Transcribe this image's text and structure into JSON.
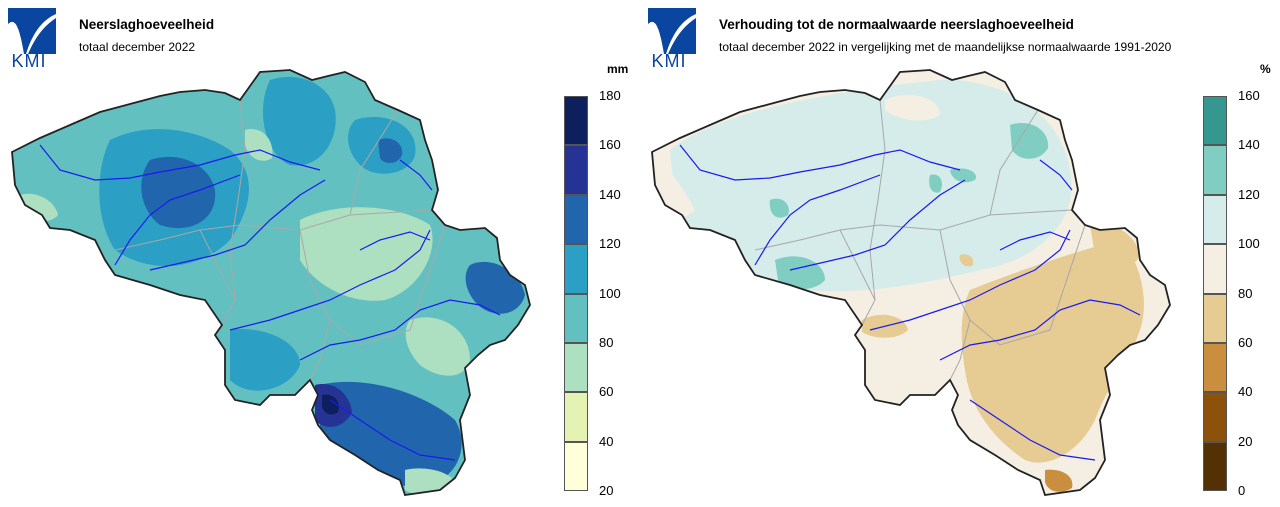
{
  "left_panel": {
    "logo_text": "KMI",
    "title": "Neerslaghoeveelheid",
    "subtitle": "totaal december 2022",
    "unit": "mm",
    "legend": {
      "ticks": [
        "180",
        "160",
        "140",
        "120",
        "100",
        "80",
        "60",
        "40",
        "20"
      ],
      "colors": [
        "#0e1f5e",
        "#253494",
        "#2166ac",
        "#2c9fc4",
        "#62c1c0",
        "#ade0c0",
        "#e4f3b3",
        "#ffffd9"
      ]
    }
  },
  "right_panel": {
    "logo_text": "KMI",
    "title": "Verhouding tot de normaalwaarde neerslaghoeveelheid",
    "subtitle": "totaal december 2022 in vergelijking met de maandelijkse normaalwaarde 1991-2020",
    "unit": "%",
    "legend": {
      "ticks": [
        "160",
        "140",
        "120",
        "100",
        "80",
        "60",
        "40",
        "20",
        "0"
      ],
      "colors": [
        "#35978f",
        "#80cdc1",
        "#d5ecea",
        "#f4efe2",
        "#e6cb93",
        "#c98f3f",
        "#8c510a",
        "#543005"
      ]
    }
  },
  "colors": {
    "river": "#1a1af0",
    "border": "#a8a8a8",
    "outline": "#222222",
    "logo_blue": "#0a46a0"
  }
}
